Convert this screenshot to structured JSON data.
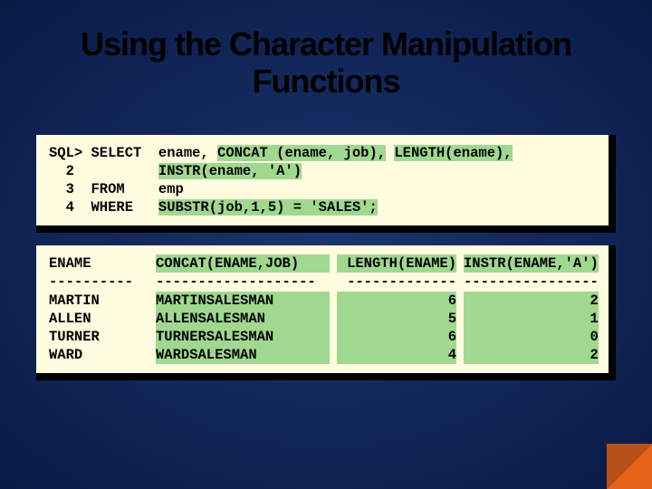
{
  "title": "Using the Character Manipulation Functions",
  "code": {
    "line1_a": "SQL> SELECT  ename, ",
    "line1_hl": "CONCAT (ename, job),",
    "line1_b": " ",
    "line1_hl2": "LENGTH(ename),",
    "line2_a": "  2          ",
    "line2_hl": "INSTR(ename, 'A')",
    "line3_a": "  3  FROM    emp",
    "line4_a": "  4  WHERE   ",
    "line4_hl": "SUBSTR(job,1,5) = 'SALES';"
  },
  "result": {
    "col1": {
      "hdr": "ENAME",
      "sep": "----------",
      "rows": [
        "MARTIN",
        "ALLEN",
        "TURNER",
        "WARD"
      ]
    },
    "col2": {
      "hdr": "CONCAT(ENAME,JOB)",
      "sep": "-------------------",
      "rows": [
        "MARTINSALESMAN",
        "ALLENSALESMAN",
        "TURNERSALESMAN",
        "WARDSALESMAN"
      ]
    },
    "col3": {
      "hdr": "LENGTH(ENAME)",
      "sep": "-------------",
      "rows": [
        "6",
        "5",
        "6",
        "4"
      ]
    },
    "col4": {
      "hdr": "INSTR(ENAME,'A')",
      "sep": "----------------",
      "rows": [
        "2",
        "1",
        "0",
        "2"
      ]
    }
  },
  "colors": {
    "bg_center": "#1a3570",
    "bg_edge": "#0a1a45",
    "box_bg": "#fffce0",
    "highlight": "#a0d890",
    "shadow": "#000000",
    "corner": "#e8641a"
  }
}
